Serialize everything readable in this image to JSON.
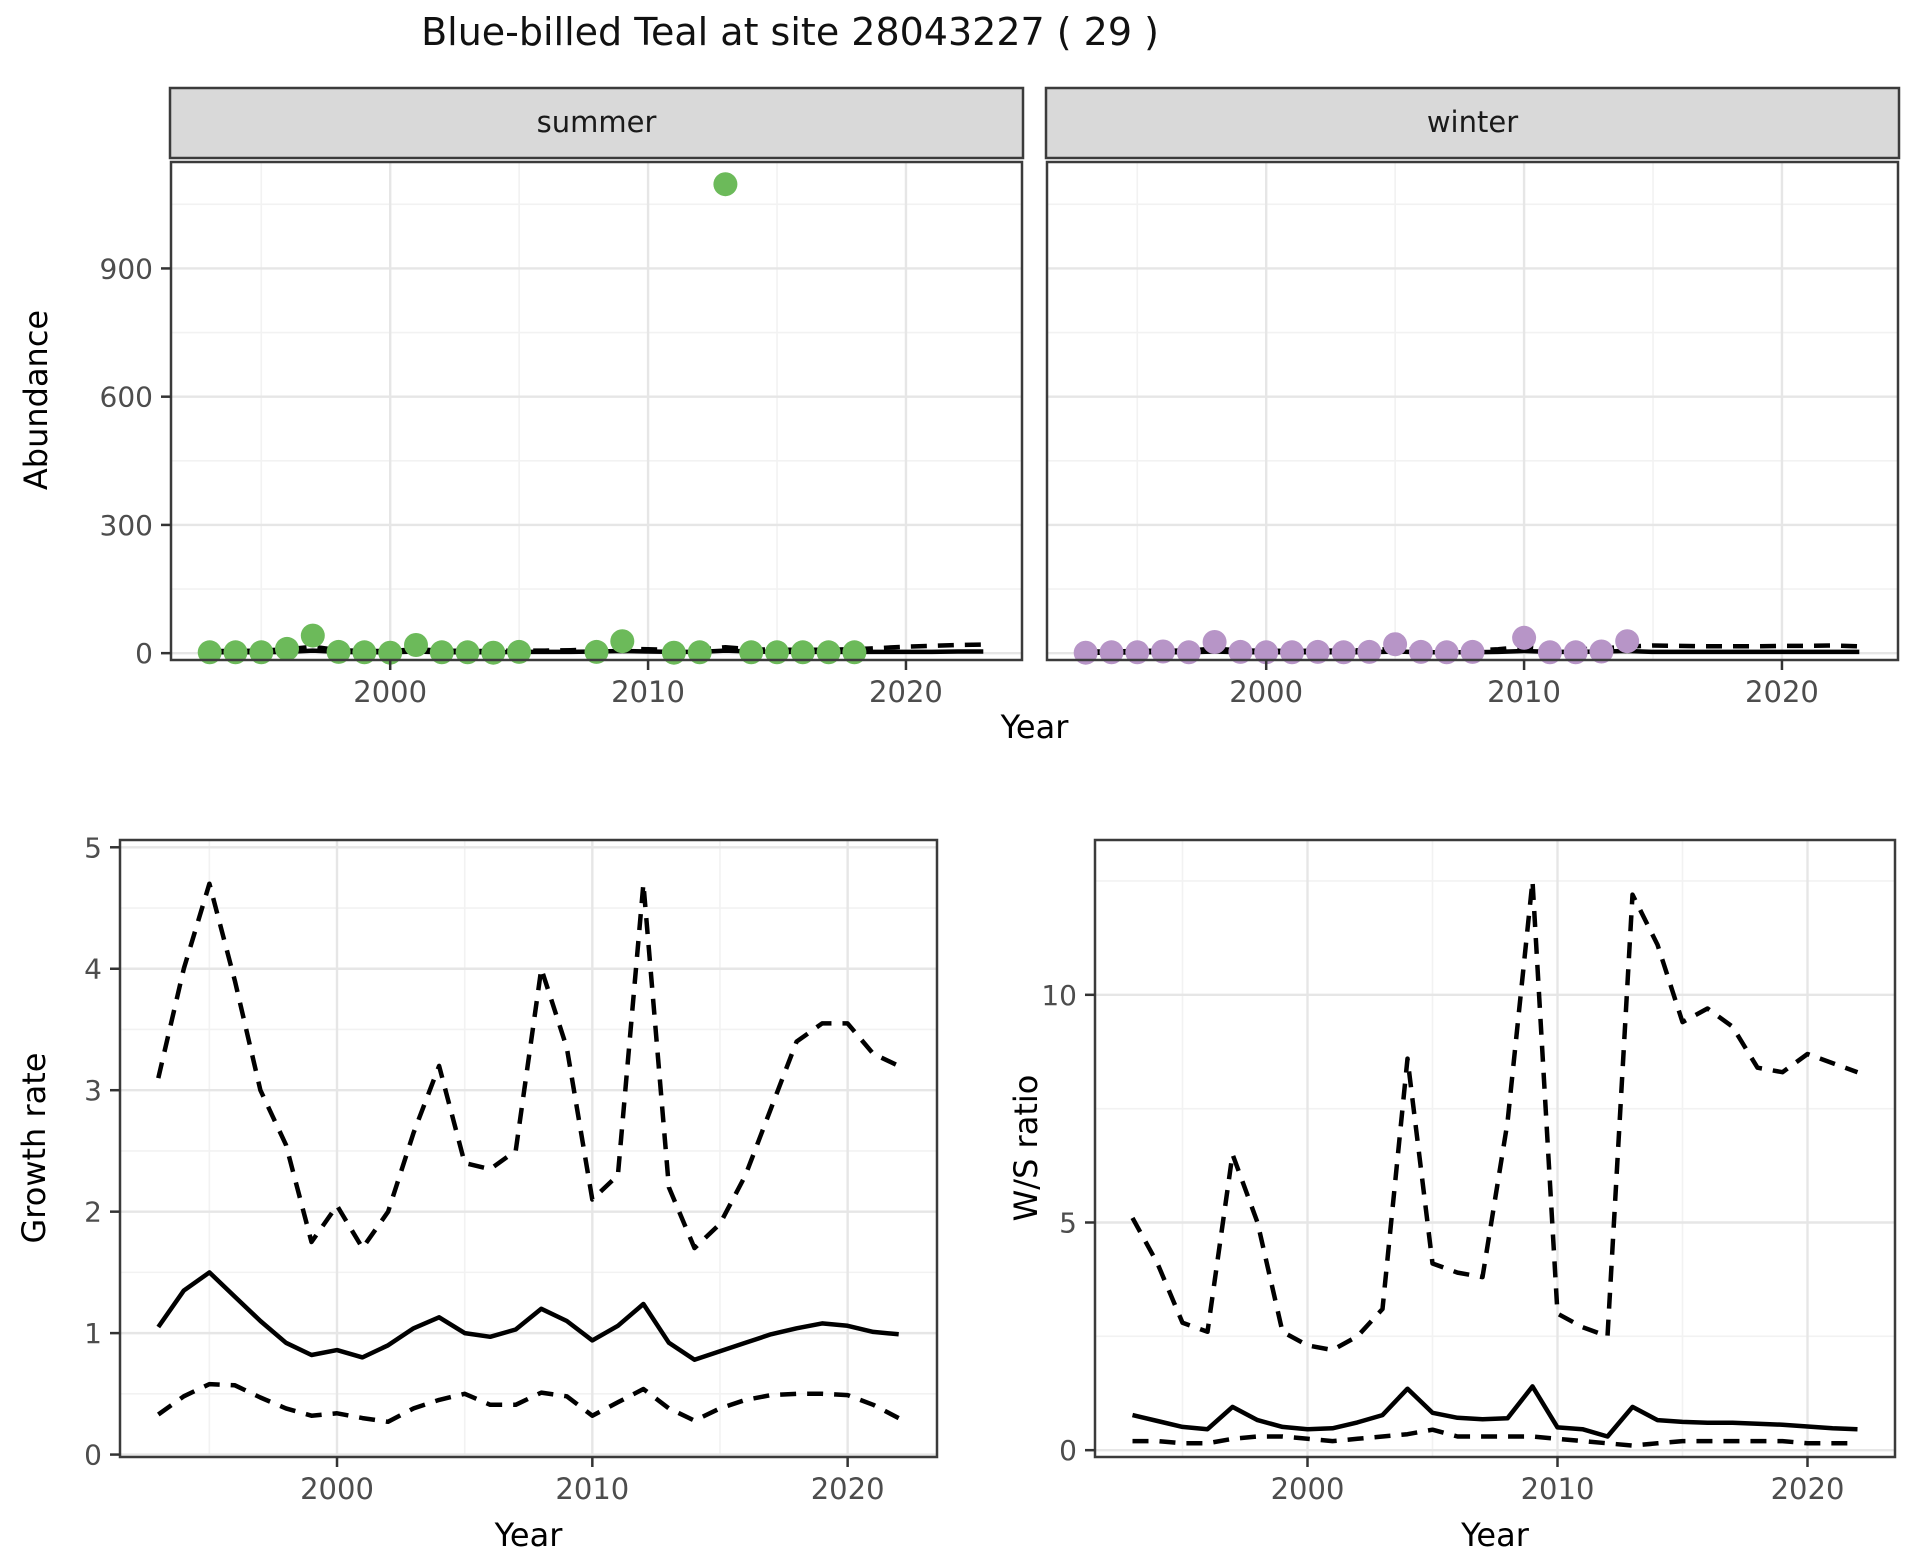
{
  "title": "Blue-billed Teal at site 28043227 ( 29 )",
  "colors": {
    "summer_point": "#6CBA5A",
    "winter_point": "#B795C7",
    "line": "#000000",
    "strip_bg": "#D9D9D9",
    "panel_border": "#3b3b3b",
    "grid_major": "#E6E6E6",
    "grid_minor": "#F2F2F2",
    "tick_text": "#4D4D4D"
  },
  "chart_data": [
    {
      "id": "abundance_by_season",
      "type": "scatter",
      "ylabel": "Abundance",
      "xlabel": "Year",
      "yticks": [
        0,
        300,
        600,
        900
      ],
      "xticks": [
        2000,
        2010,
        2020
      ],
      "xlim": [
        1991.5,
        2024.5
      ],
      "legend_position": "none",
      "line_years": [
        1993,
        1994,
        1995,
        1996,
        1997,
        1998,
        1999,
        2000,
        2001,
        2002,
        2003,
        2004,
        2005,
        2006,
        2007,
        2008,
        2009,
        2010,
        2011,
        2012,
        2013,
        2014,
        2015,
        2016,
        2017,
        2018,
        2019,
        2020,
        2021,
        2022,
        2023
      ],
      "facets": [
        {
          "name": "summer",
          "point_color": "#6CBA5A",
          "points": {
            "years": [
              1993,
              1994,
              1995,
              1996,
              1997,
              1998,
              1999,
              2000,
              2001,
              2002,
              2003,
              2004,
              2005,
              2008,
              2009,
              2011,
              2012,
              2013,
              2014,
              2015,
              2016,
              2017,
              2018
            ],
            "values": [
              2,
              2,
              2,
              10,
              41,
              3,
              2,
              1,
              19,
              2,
              2,
              1,
              3,
              3,
              28,
              1,
              2,
              1097,
              2,
              2,
              2,
              2,
              2
            ]
          },
          "median_line": [
            2,
            2,
            2,
            3,
            6,
            3,
            2,
            2,
            4,
            2,
            2,
            2,
            3,
            3,
            3,
            4,
            5,
            4,
            3,
            3,
            6,
            4,
            3,
            3,
            3,
            3,
            3,
            3,
            3,
            4,
            4
          ],
          "upper_ci": [
            5,
            5,
            6,
            9,
            15,
            7,
            5,
            5,
            9,
            6,
            5,
            5,
            6,
            6,
            7,
            9,
            11,
            9,
            8,
            8,
            14,
            9,
            8,
            8,
            8,
            9,
            12,
            15,
            17,
            19,
            20
          ]
        },
        {
          "name": "winter",
          "point_color": "#B795C7",
          "points": {
            "years": [
              1993,
              1994,
              1995,
              1996,
              1997,
              1998,
              1999,
              2000,
              2001,
              2002,
              2003,
              2004,
              2005,
              2006,
              2007,
              2008,
              2010,
              2011,
              2012,
              2013,
              2014
            ],
            "values": [
              1,
              2,
              2,
              4,
              2,
              26,
              3,
              2,
              2,
              3,
              2,
              3,
              21,
              3,
              2,
              3,
              36,
              2,
              2,
              4,
              28
            ]
          },
          "median_line": [
            1,
            1,
            2,
            2,
            2,
            4,
            2,
            2,
            2,
            2,
            2,
            2,
            4,
            2,
            2,
            2,
            3,
            5,
            3,
            3,
            4,
            5,
            3,
            3,
            3,
            3,
            3,
            3,
            3,
            3,
            3
          ],
          "upper_ci": [
            4,
            4,
            5,
            6,
            6,
            11,
            6,
            6,
            5,
            6,
            6,
            7,
            11,
            7,
            6,
            7,
            9,
            15,
            9,
            9,
            11,
            15,
            18,
            17,
            16,
            16,
            16,
            17,
            17,
            18,
            16
          ]
        }
      ]
    },
    {
      "id": "growth_rate",
      "type": "line",
      "ylabel": "Growth rate",
      "xlabel": "Year",
      "yticks": [
        0,
        1,
        2,
        3,
        4,
        5
      ],
      "xticks": [
        2000,
        2010,
        2020
      ],
      "xlim": [
        1991.5,
        2023.5
      ],
      "ylim": [
        0,
        5
      ],
      "years": [
        1993,
        1994,
        1995,
        1996,
        1997,
        1998,
        1999,
        2000,
        2001,
        2002,
        2003,
        2004,
        2005,
        2006,
        2007,
        2008,
        2009,
        2010,
        2011,
        2012,
        2013,
        2014,
        2015,
        2016,
        2017,
        2018,
        2019,
        2020,
        2021,
        2022
      ],
      "series": [
        {
          "name": "mean",
          "style": "solid",
          "values": [
            1.05,
            1.35,
            1.5,
            1.3,
            1.1,
            0.92,
            0.82,
            0.86,
            0.8,
            0.9,
            1.04,
            1.13,
            1.0,
            0.97,
            1.03,
            1.2,
            1.1,
            0.94,
            1.06,
            1.24,
            0.92,
            0.78,
            0.85,
            0.92,
            0.99,
            1.04,
            1.08,
            1.06,
            1.01,
            0.99
          ]
        },
        {
          "name": "upper CI",
          "style": "dashed",
          "values": [
            3.1,
            4.0,
            4.7,
            3.9,
            3.0,
            2.55,
            1.75,
            2.05,
            1.7,
            2.0,
            2.65,
            3.2,
            2.4,
            2.35,
            2.5,
            4.0,
            3.35,
            2.1,
            2.3,
            4.7,
            2.2,
            1.7,
            1.9,
            2.3,
            2.85,
            3.4,
            3.55,
            3.55,
            3.3,
            3.2
          ]
        },
        {
          "name": "lower CI",
          "style": "dashed",
          "values": [
            0.33,
            0.48,
            0.58,
            0.57,
            0.47,
            0.38,
            0.32,
            0.34,
            0.3,
            0.27,
            0.38,
            0.45,
            0.5,
            0.41,
            0.41,
            0.51,
            0.48,
            0.32,
            0.43,
            0.54,
            0.38,
            0.28,
            0.38,
            0.45,
            0.49,
            0.5,
            0.5,
            0.49,
            0.41,
            0.3
          ]
        }
      ]
    },
    {
      "id": "winter_summer_ratio",
      "type": "line",
      "ylabel": "W/S ratio",
      "xlabel": "Year",
      "yticks": [
        0,
        5,
        10
      ],
      "xticks": [
        2000,
        2010,
        2020
      ],
      "xlim": [
        1991.5,
        2023.5
      ],
      "ylim": [
        0,
        13.4
      ],
      "years": [
        1993,
        1994,
        1995,
        1996,
        1997,
        1998,
        1999,
        2000,
        2001,
        2002,
        2003,
        2004,
        2005,
        2006,
        2007,
        2008,
        2009,
        2010,
        2011,
        2012,
        2013,
        2014,
        2015,
        2016,
        2017,
        2018,
        2019,
        2020,
        2021,
        2022
      ],
      "series": [
        {
          "name": "mean",
          "style": "solid",
          "values": [
            0.77,
            0.64,
            0.51,
            0.46,
            0.95,
            0.66,
            0.51,
            0.46,
            0.48,
            0.61,
            0.77,
            1.35,
            0.82,
            0.71,
            0.68,
            0.7,
            1.4,
            0.5,
            0.46,
            0.3,
            0.95,
            0.66,
            0.62,
            0.6,
            0.6,
            0.58,
            0.56,
            0.52,
            0.48,
            0.46
          ]
        },
        {
          "name": "upper CI",
          "style": "dashed",
          "values": [
            5.1,
            4.1,
            2.8,
            2.6,
            6.5,
            5.0,
            2.6,
            2.3,
            2.2,
            2.5,
            3.1,
            8.6,
            4.1,
            3.9,
            3.8,
            7.2,
            12.5,
            3.0,
            2.7,
            2.5,
            12.2,
            11.1,
            9.4,
            9.7,
            9.3,
            8.4,
            8.3,
            8.7,
            8.5,
            8.3
          ]
        },
        {
          "name": "lower CI",
          "style": "dashed",
          "values": [
            0.2,
            0.2,
            0.15,
            0.15,
            0.25,
            0.3,
            0.3,
            0.25,
            0.2,
            0.25,
            0.3,
            0.35,
            0.45,
            0.3,
            0.3,
            0.3,
            0.3,
            0.25,
            0.2,
            0.15,
            0.1,
            0.15,
            0.2,
            0.2,
            0.2,
            0.2,
            0.2,
            0.15,
            0.15,
            0.15
          ]
        }
      ]
    }
  ]
}
